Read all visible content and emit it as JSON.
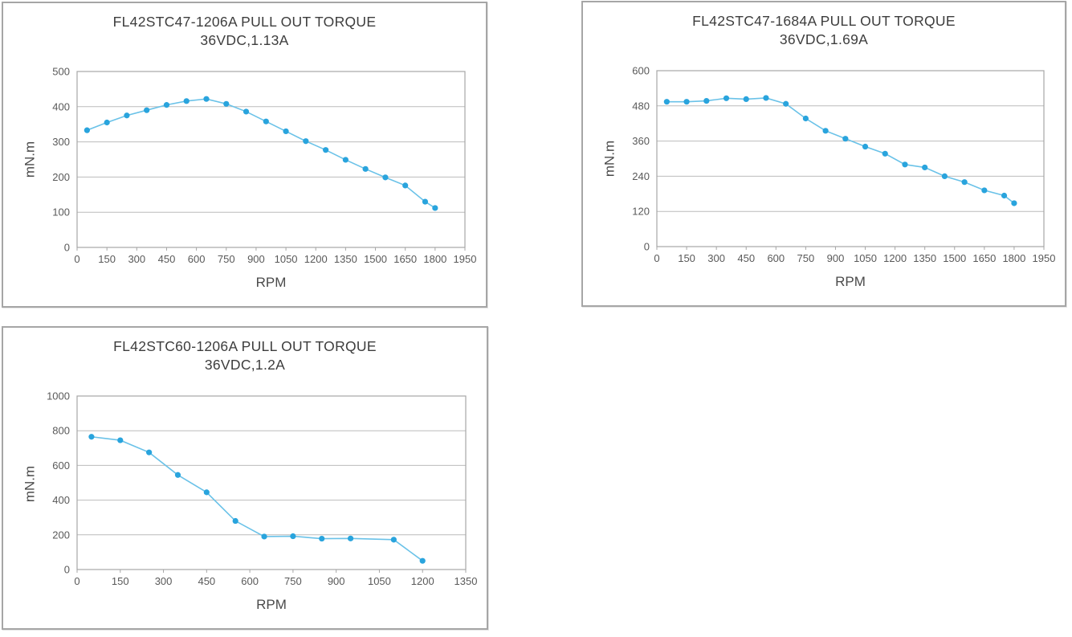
{
  "style": {
    "marker_color": "#29a4dd",
    "line_color": "#6ac2e8",
    "grid_color": "#bcbcbc",
    "axis_color": "#a6a6a6",
    "title_color": "#3d3d3d",
    "tick_color": "#595959",
    "panel_border_color": "#a6a6a6",
    "background": "#ffffff"
  },
  "chart_data": [
    {
      "type": "line",
      "title": "FL42STC47-1206A PULL OUT TORQUE",
      "subtitle": "36VDC,1.13A",
      "xlabel": "RPM",
      "ylabel": "mN.m",
      "legend": "none",
      "grid": "horizontal",
      "xlim": [
        0,
        1950
      ],
      "ylim": [
        0,
        500
      ],
      "xticks": [
        0,
        150,
        300,
        450,
        600,
        750,
        900,
        1050,
        1200,
        1350,
        1500,
        1650,
        1800,
        1950
      ],
      "yticks": [
        0,
        100,
        200,
        300,
        400,
        500
      ],
      "x": [
        50,
        150,
        250,
        350,
        450,
        550,
        650,
        750,
        850,
        950,
        1050,
        1150,
        1250,
        1350,
        1450,
        1550,
        1650,
        1750,
        1800
      ],
      "y": [
        333,
        355,
        375,
        390,
        405,
        416,
        422,
        408,
        386,
        358,
        330,
        302,
        277,
        249,
        223,
        199,
        176,
        130,
        112
      ]
    },
    {
      "type": "line",
      "title": "FL42STC47-1684A PULL OUT TORQUE",
      "subtitle": "36VDC,1.69A",
      "xlabel": "RPM",
      "ylabel": "mN.m",
      "legend": "none",
      "grid": "horizontal",
      "xlim": [
        0,
        1950
      ],
      "ylim": [
        0,
        600
      ],
      "xticks": [
        0,
        150,
        300,
        450,
        600,
        750,
        900,
        1050,
        1200,
        1350,
        1500,
        1650,
        1800,
        1950
      ],
      "yticks": [
        0,
        120,
        240,
        360,
        480,
        600
      ],
      "x": [
        50,
        150,
        250,
        350,
        450,
        550,
        650,
        750,
        850,
        950,
        1050,
        1150,
        1250,
        1350,
        1450,
        1550,
        1650,
        1750,
        1800
      ],
      "y": [
        494,
        494,
        497,
        506,
        503,
        507,
        487,
        437,
        395,
        368,
        341,
        317,
        280,
        270,
        240,
        220,
        192,
        174,
        148
      ]
    },
    {
      "type": "line",
      "title": "FL42STC60-1206A PULL OUT TORQUE",
      "subtitle": "36VDC,1.2A",
      "xlabel": "RPM",
      "ylabel": "mN.m",
      "legend": "none",
      "grid": "horizontal",
      "xlim": [
        0,
        1350
      ],
      "ylim": [
        0,
        1000
      ],
      "xticks": [
        0,
        150,
        300,
        450,
        600,
        750,
        900,
        1050,
        1200,
        1350
      ],
      "yticks": [
        0,
        200,
        400,
        600,
        800,
        1000
      ],
      "x": [
        50,
        150,
        250,
        350,
        450,
        550,
        650,
        750,
        850,
        950,
        1100,
        1200
      ],
      "y": [
        765,
        745,
        675,
        545,
        445,
        280,
        190,
        192,
        178,
        179,
        172,
        50
      ]
    }
  ]
}
